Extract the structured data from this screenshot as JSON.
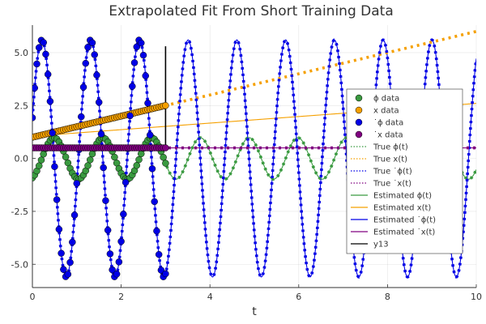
{
  "chart_data": {
    "type": "line",
    "title": "Extrapolated Fit From Short Training Data",
    "xlabel": "t",
    "ylabel": "",
    "xlim": [
      0,
      10
    ],
    "ylim": [
      -6.1,
      6.3
    ],
    "x_ticks": [
      "0",
      "2",
      "4",
      "6",
      "8",
      "10"
    ],
    "y_ticks": [
      "-5.0",
      "-2.5",
      "0.0",
      "2.5",
      "5.0"
    ],
    "x_tick_values": [
      0,
      2,
      4,
      6,
      8,
      10
    ],
    "y_tick_values": [
      -5,
      -2.5,
      0,
      2.5,
      5
    ],
    "grid": true,
    "legend_position": "right",
    "training_end": 3.0,
    "series": [
      {
        "name": "ϕ data",
        "kind": "scatter",
        "color": "#3a9a40",
        "model": "phi",
        "x_range": [
          0,
          3
        ]
      },
      {
        "name": "x data",
        "kind": "scatter",
        "color": "#f5a000",
        "model": "x",
        "x_range": [
          0,
          3
        ]
      },
      {
        "name": "˙ϕ data",
        "kind": "scatter",
        "color": "#0000e6",
        "model": "dphi",
        "x_range": [
          0,
          3
        ]
      },
      {
        "name": "˙x data",
        "kind": "scatter",
        "color": "#800080",
        "model": "dx",
        "x_range": [
          0,
          3
        ]
      },
      {
        "name": "True ϕ(t)",
        "kind": "dotted",
        "color": "#3a9a40",
        "model": "phi",
        "x_range": [
          0,
          10
        ]
      },
      {
        "name": "True x(t)",
        "kind": "dotted",
        "color": "#f5a000",
        "model": "x",
        "x_range": [
          0,
          10
        ]
      },
      {
        "name": "True ˙ϕ(t)",
        "kind": "dotted",
        "color": "#0000e6",
        "model": "dphi",
        "x_range": [
          0,
          10
        ]
      },
      {
        "name": "True ˙x(t)",
        "kind": "dotted",
        "color": "#800080",
        "model": "dx",
        "x_range": [
          0,
          10
        ]
      },
      {
        "name": "Estimated ϕ(t)",
        "kind": "line",
        "color": "#3a9a40",
        "model": "phi",
        "x_range": [
          0,
          10
        ]
      },
      {
        "name": "Estimated x(t)",
        "kind": "line",
        "color": "#f5a000",
        "model": "x_est",
        "x_range": [
          0,
          10
        ]
      },
      {
        "name": "Estimated ˙ϕ(t)",
        "kind": "line",
        "color": "#0000e6",
        "model": "dphi",
        "x_range": [
          0,
          10
        ]
      },
      {
        "name": "Estimated ˙x(t)",
        "kind": "line",
        "color": "#800080",
        "model": "dx",
        "x_range": [
          0,
          10
        ]
      },
      {
        "name": "y13",
        "kind": "vline",
        "color": "#000000",
        "x": 3.0,
        "y_range": [
          0.5,
          5.3
        ]
      }
    ],
    "models": {
      "phi": {
        "form": "a*sin(w*t+p)",
        "a": 0.98,
        "w": 5.72,
        "p": -1.22
      },
      "dphi": {
        "form": "a*cos(w*t+p)",
        "a": 5.6,
        "w": 5.72,
        "p": -1.22
      },
      "x": {
        "form": "m*t+b",
        "m": 0.5,
        "b": 1.0
      },
      "x_est": {
        "form": "m*t+b",
        "m": 0.155,
        "b": 1.05
      },
      "dx": {
        "form": "const",
        "c": 0.5
      }
    }
  }
}
